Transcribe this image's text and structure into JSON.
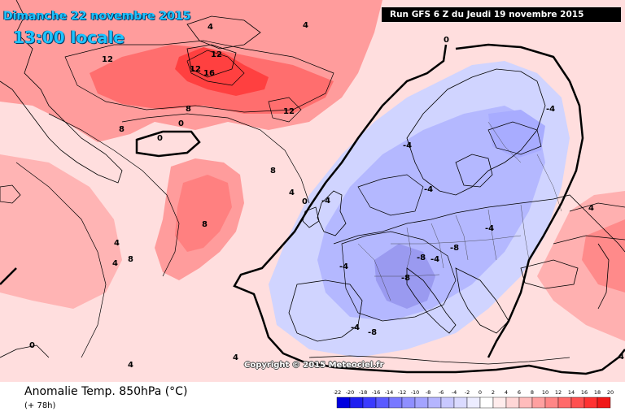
{
  "header": {
    "date_label": "Dimanche 22 novembre 2015",
    "time_label": "13:00 locale",
    "run_label": "Run GFS 6 Z du Jeudi 19 novembre 2015"
  },
  "map": {
    "copyright": "Copyright © 2015 Meteociel.fr",
    "contour_labels": [
      "4",
      "4",
      "12",
      "12",
      "12",
      "16",
      "12",
      "8",
      "8",
      "0",
      "0",
      "8",
      "8",
      "4",
      "4",
      "8",
      "0",
      "4",
      "4",
      "0",
      "0",
      "-4",
      "-4",
      "-4",
      "-4",
      "-4",
      "-4",
      "-8",
      "-8",
      "-8",
      "-4",
      "-8",
      "-4",
      "4",
      "4",
      "4"
    ]
  },
  "footer": {
    "parameter_title": "Anomalie Temp. 850hPa (°C)",
    "lead_time": "(+ 78h)"
  },
  "legend": {
    "ticks": [
      "-22",
      "-20",
      "-18",
      "-16",
      "-14",
      "-12",
      "-10",
      "-8",
      "-6",
      "-4",
      "-2",
      "0",
      "2",
      "4",
      "6",
      "8",
      "10",
      "12",
      "14",
      "16",
      "18",
      "20"
    ],
    "colors": [
      "#0000e0",
      "#1f1ff0",
      "#3b3bff",
      "#5a5aff",
      "#7878ff",
      "#8f8fff",
      "#a3a3ff",
      "#b5b5ff",
      "#c8c8ff",
      "#dadaff",
      "#ececff",
      "#ffffff",
      "#ffecec",
      "#ffd6d6",
      "#ffbcbc",
      "#ffa0a0",
      "#ff8686",
      "#ff6a6a",
      "#ff5050",
      "#ff3232",
      "#f01818",
      "#e00000"
    ]
  },
  "colors": {
    "warm_light": "#ffd8d8",
    "warm_mid": "#ff9c9c",
    "warm_strong": "#ff5a5a",
    "cold_light": "#d8dcff",
    "cold_mid": "#b4b8ff",
    "cold_strong": "#8c8cf0",
    "zero_line": "#000000",
    "coast": "#000000"
  }
}
